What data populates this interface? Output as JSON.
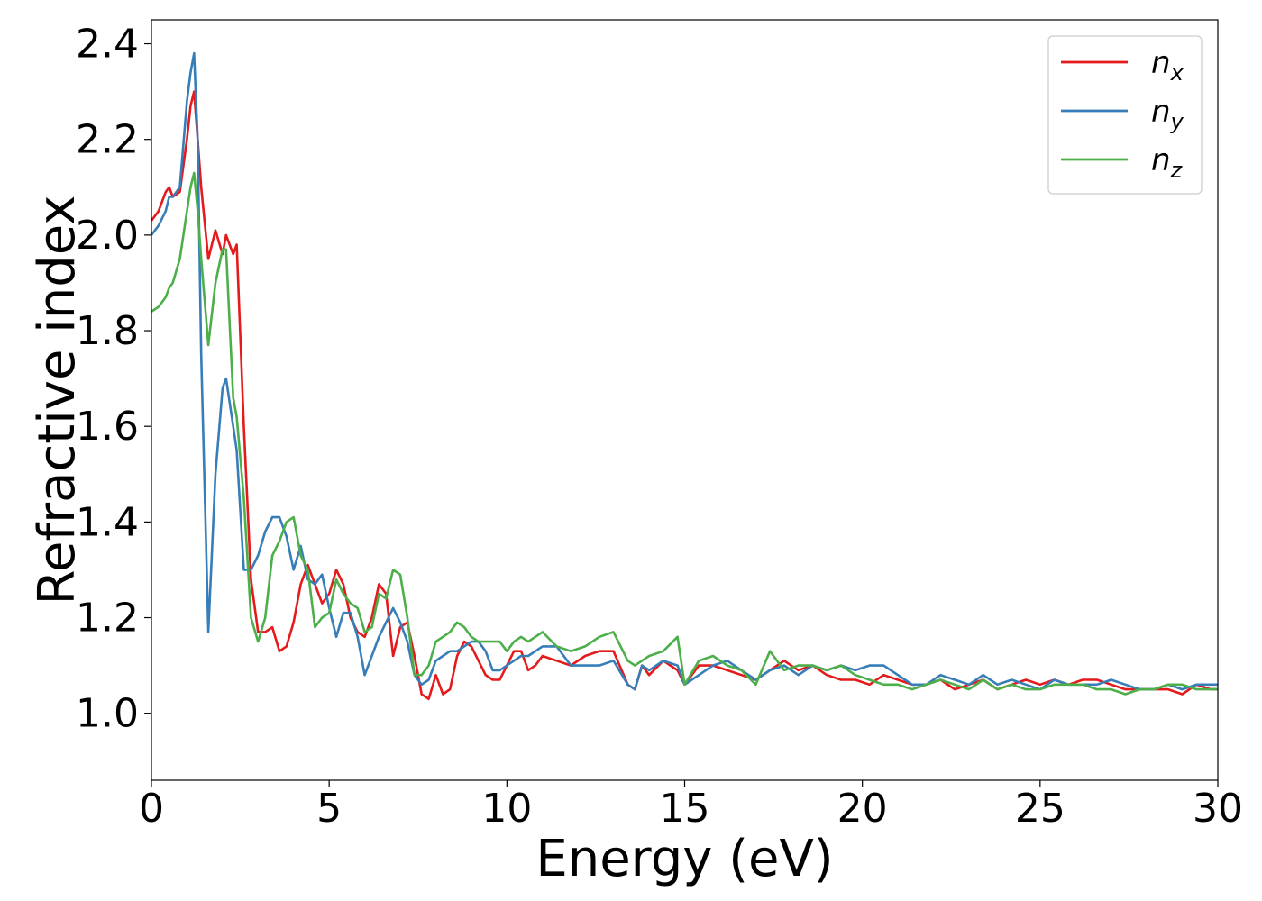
{
  "chart_data": {
    "type": "line",
    "xlabel": "Energy (eV)",
    "ylabel": "Refractive index",
    "xlim": [
      0,
      30
    ],
    "ylim": [
      0.86,
      2.45
    ],
    "xticks": [
      0,
      5,
      10,
      15,
      20,
      25,
      30
    ],
    "yticks": [
      1.0,
      1.2,
      1.4,
      1.6,
      1.8,
      2.0,
      2.2,
      2.4
    ],
    "grid": false,
    "legend_position": "top-right",
    "series": [
      {
        "name": "n_x",
        "legend_base": "n",
        "legend_sub": "x",
        "color": "#e41a1c",
        "x": [
          0,
          0.2,
          0.4,
          0.5,
          0.6,
          0.8,
          1.0,
          1.1,
          1.2,
          1.3,
          1.4,
          1.6,
          1.8,
          2.0,
          2.1,
          2.3,
          2.4,
          2.6,
          2.8,
          3.0,
          3.2,
          3.4,
          3.6,
          3.8,
          4.0,
          4.2,
          4.4,
          4.6,
          4.8,
          5.0,
          5.2,
          5.4,
          5.6,
          5.8,
          6.0,
          6.2,
          6.4,
          6.6,
          6.8,
          7.0,
          7.2,
          7.4,
          7.6,
          7.8,
          8.0,
          8.2,
          8.4,
          8.6,
          8.8,
          9.0,
          9.2,
          9.4,
          9.6,
          9.8,
          10.0,
          10.2,
          10.4,
          10.6,
          10.8,
          11.0,
          11.4,
          11.8,
          12.2,
          12.6,
          13.0,
          13.4,
          13.6,
          13.8,
          14.0,
          14.4,
          14.8,
          15.0,
          15.4,
          15.8,
          16.2,
          16.6,
          17.0,
          17.4,
          17.8,
          18.2,
          18.6,
          19.0,
          19.4,
          19.8,
          20.2,
          20.6,
          21.0,
          21.4,
          21.8,
          22.2,
          22.6,
          23.0,
          23.4,
          23.8,
          24.2,
          24.6,
          25.0,
          25.4,
          25.8,
          26.2,
          26.6,
          27.0,
          27.4,
          27.8,
          28.2,
          28.6,
          29.0,
          29.4,
          29.8,
          30.0
        ],
        "y": [
          2.03,
          2.05,
          2.09,
          2.1,
          2.08,
          2.09,
          2.2,
          2.27,
          2.3,
          2.2,
          2.1,
          1.95,
          2.01,
          1.96,
          2.0,
          1.96,
          1.98,
          1.6,
          1.28,
          1.17,
          1.17,
          1.18,
          1.13,
          1.14,
          1.19,
          1.27,
          1.31,
          1.27,
          1.23,
          1.25,
          1.3,
          1.27,
          1.2,
          1.17,
          1.16,
          1.2,
          1.27,
          1.25,
          1.12,
          1.18,
          1.19,
          1.12,
          1.04,
          1.03,
          1.08,
          1.04,
          1.05,
          1.12,
          1.15,
          1.14,
          1.11,
          1.08,
          1.07,
          1.07,
          1.1,
          1.13,
          1.13,
          1.09,
          1.1,
          1.12,
          1.11,
          1.1,
          1.12,
          1.13,
          1.13,
          1.06,
          1.05,
          1.1,
          1.08,
          1.11,
          1.09,
          1.06,
          1.1,
          1.1,
          1.09,
          1.08,
          1.07,
          1.09,
          1.11,
          1.09,
          1.1,
          1.08,
          1.07,
          1.07,
          1.06,
          1.08,
          1.07,
          1.06,
          1.06,
          1.07,
          1.05,
          1.06,
          1.07,
          1.05,
          1.06,
          1.07,
          1.06,
          1.07,
          1.06,
          1.07,
          1.07,
          1.06,
          1.05,
          1.05,
          1.05,
          1.05,
          1.04,
          1.06,
          1.05,
          1.05
        ]
      },
      {
        "name": "n_y",
        "legend_base": "n",
        "legend_sub": "y",
        "color": "#377eb8",
        "x": [
          0,
          0.2,
          0.4,
          0.5,
          0.6,
          0.8,
          1.0,
          1.1,
          1.2,
          1.3,
          1.4,
          1.6,
          1.8,
          2.0,
          2.1,
          2.3,
          2.4,
          2.6,
          2.8,
          3.0,
          3.2,
          3.4,
          3.6,
          3.8,
          4.0,
          4.2,
          4.4,
          4.6,
          4.8,
          5.0,
          5.2,
          5.4,
          5.6,
          5.8,
          6.0,
          6.2,
          6.4,
          6.6,
          6.8,
          7.0,
          7.2,
          7.4,
          7.6,
          7.8,
          8.0,
          8.2,
          8.4,
          8.6,
          8.8,
          9.0,
          9.2,
          9.4,
          9.6,
          9.8,
          10.0,
          10.2,
          10.4,
          10.6,
          10.8,
          11.0,
          11.4,
          11.8,
          12.2,
          12.6,
          13.0,
          13.4,
          13.6,
          13.8,
          14.0,
          14.4,
          14.8,
          15.0,
          15.4,
          15.8,
          16.2,
          16.6,
          17.0,
          17.4,
          17.8,
          18.2,
          18.6,
          19.0,
          19.4,
          19.8,
          20.2,
          20.6,
          21.0,
          21.4,
          21.8,
          22.2,
          22.6,
          23.0,
          23.4,
          23.8,
          24.2,
          24.6,
          25.0,
          25.4,
          25.8,
          26.2,
          26.6,
          27.0,
          27.4,
          27.8,
          28.2,
          28.6,
          29.0,
          29.4,
          29.8,
          30.0
        ],
        "y": [
          2.0,
          2.02,
          2.05,
          2.08,
          2.08,
          2.1,
          2.28,
          2.34,
          2.38,
          2.2,
          1.75,
          1.17,
          1.5,
          1.68,
          1.7,
          1.6,
          1.55,
          1.3,
          1.3,
          1.33,
          1.38,
          1.41,
          1.41,
          1.37,
          1.3,
          1.35,
          1.28,
          1.27,
          1.29,
          1.22,
          1.16,
          1.21,
          1.21,
          1.16,
          1.08,
          1.12,
          1.16,
          1.19,
          1.22,
          1.19,
          1.15,
          1.08,
          1.06,
          1.07,
          1.11,
          1.12,
          1.13,
          1.13,
          1.14,
          1.15,
          1.15,
          1.13,
          1.09,
          1.09,
          1.1,
          1.11,
          1.12,
          1.12,
          1.13,
          1.14,
          1.14,
          1.1,
          1.1,
          1.1,
          1.11,
          1.06,
          1.05,
          1.1,
          1.09,
          1.11,
          1.1,
          1.06,
          1.08,
          1.1,
          1.11,
          1.09,
          1.07,
          1.09,
          1.1,
          1.08,
          1.1,
          1.09,
          1.1,
          1.09,
          1.1,
          1.1,
          1.08,
          1.06,
          1.06,
          1.08,
          1.07,
          1.06,
          1.08,
          1.06,
          1.07,
          1.06,
          1.05,
          1.07,
          1.06,
          1.06,
          1.06,
          1.07,
          1.06,
          1.05,
          1.05,
          1.06,
          1.05,
          1.06,
          1.06,
          1.06
        ]
      },
      {
        "name": "n_z",
        "legend_base": "n",
        "legend_sub": "z",
        "color": "#4daf4a",
        "x": [
          0,
          0.2,
          0.4,
          0.5,
          0.6,
          0.8,
          1.0,
          1.1,
          1.2,
          1.3,
          1.4,
          1.6,
          1.8,
          2.0,
          2.1,
          2.3,
          2.4,
          2.6,
          2.8,
          3.0,
          3.2,
          3.4,
          3.6,
          3.8,
          4.0,
          4.2,
          4.4,
          4.6,
          4.8,
          5.0,
          5.2,
          5.4,
          5.6,
          5.8,
          6.0,
          6.2,
          6.4,
          6.6,
          6.8,
          7.0,
          7.2,
          7.4,
          7.6,
          7.8,
          8.0,
          8.2,
          8.4,
          8.6,
          8.8,
          9.0,
          9.2,
          9.4,
          9.6,
          9.8,
          10.0,
          10.2,
          10.4,
          10.6,
          10.8,
          11.0,
          11.4,
          11.8,
          12.2,
          12.6,
          13.0,
          13.4,
          13.6,
          13.8,
          14.0,
          14.4,
          14.8,
          15.0,
          15.4,
          15.8,
          16.2,
          16.6,
          17.0,
          17.4,
          17.8,
          18.2,
          18.6,
          19.0,
          19.4,
          19.8,
          20.2,
          20.6,
          21.0,
          21.4,
          21.8,
          22.2,
          22.6,
          23.0,
          23.4,
          23.8,
          24.2,
          24.6,
          25.0,
          25.4,
          25.8,
          26.2,
          26.6,
          27.0,
          27.4,
          27.8,
          28.2,
          28.6,
          29.0,
          29.4,
          29.8,
          30.0
        ],
        "y": [
          1.84,
          1.85,
          1.87,
          1.89,
          1.9,
          1.95,
          2.05,
          2.1,
          2.13,
          2.05,
          1.95,
          1.77,
          1.9,
          1.97,
          1.97,
          1.66,
          1.62,
          1.45,
          1.2,
          1.15,
          1.2,
          1.33,
          1.36,
          1.4,
          1.41,
          1.33,
          1.3,
          1.18,
          1.2,
          1.21,
          1.28,
          1.25,
          1.23,
          1.22,
          1.17,
          1.18,
          1.25,
          1.24,
          1.3,
          1.29,
          1.2,
          1.08,
          1.08,
          1.1,
          1.15,
          1.16,
          1.17,
          1.19,
          1.18,
          1.16,
          1.15,
          1.15,
          1.15,
          1.15,
          1.13,
          1.15,
          1.16,
          1.15,
          1.16,
          1.17,
          1.14,
          1.13,
          1.14,
          1.16,
          1.17,
          1.11,
          1.1,
          1.11,
          1.12,
          1.13,
          1.16,
          1.06,
          1.11,
          1.12,
          1.1,
          1.09,
          1.06,
          1.13,
          1.09,
          1.1,
          1.1,
          1.09,
          1.1,
          1.08,
          1.07,
          1.06,
          1.06,
          1.05,
          1.06,
          1.07,
          1.06,
          1.05,
          1.07,
          1.05,
          1.06,
          1.05,
          1.05,
          1.06,
          1.06,
          1.06,
          1.05,
          1.05,
          1.04,
          1.05,
          1.05,
          1.06,
          1.06,
          1.05,
          1.05,
          1.05
        ]
      }
    ]
  }
}
